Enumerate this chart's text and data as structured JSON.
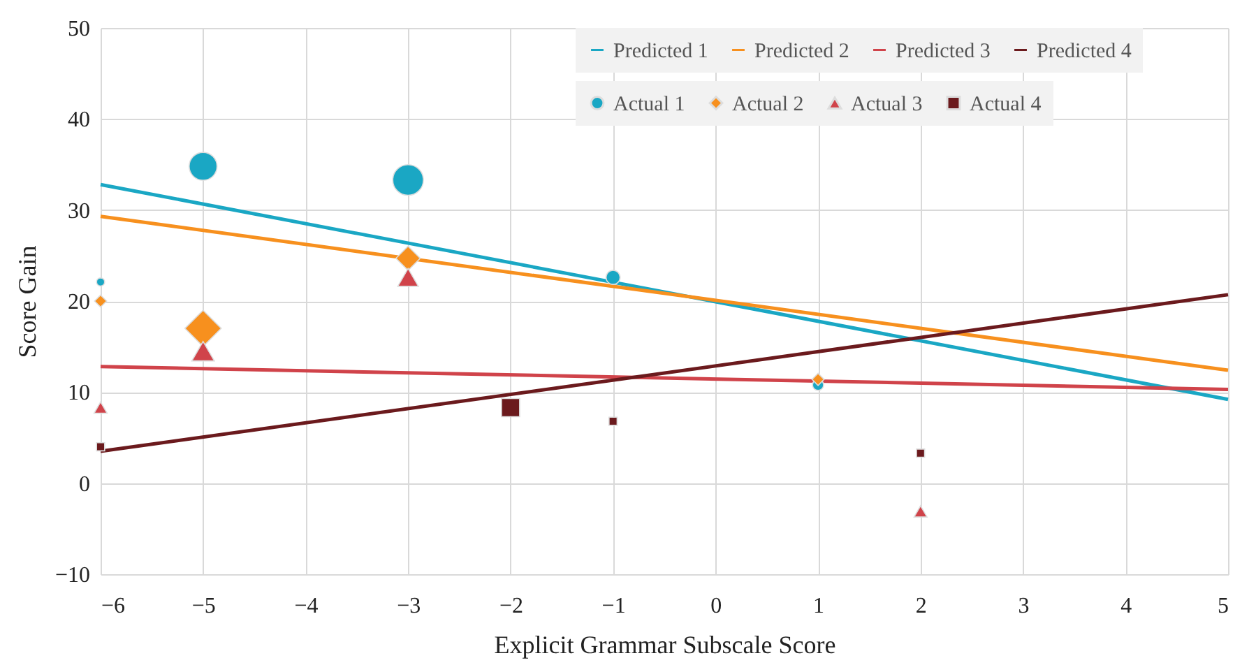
{
  "chart_data": {
    "type": "bubble",
    "xlabel": "Explicit Grammar Subscale Score",
    "ylabel": "Score Gain",
    "xlim": [
      -6,
      5
    ],
    "xticks": [
      -6,
      -5,
      -4,
      -3,
      -2,
      -1,
      0,
      1,
      2,
      3,
      4,
      5
    ],
    "ylim": [
      -10,
      50
    ],
    "yticks": [
      -10,
      0,
      10,
      20,
      30,
      40,
      50
    ],
    "grid": true,
    "legend": "top right",
    "series": [
      {
        "name": "Predicted 1",
        "type": "line",
        "color": "#1aa7c4",
        "x": [
          -6,
          5
        ],
        "values": [
          32.8,
          9.2
        ]
      },
      {
        "name": "Predicted 2",
        "type": "line",
        "color": "#f7901e",
        "x": [
          -6,
          5
        ],
        "values": [
          29.3,
          12.4
        ]
      },
      {
        "name": "Predicted 3",
        "type": "line",
        "color": "#d0434a",
        "x": [
          -6,
          5
        ],
        "values": [
          12.8,
          10.3
        ]
      },
      {
        "name": "Predicted 4",
        "type": "line",
        "color": "#6b1a1d",
        "x": [
          -6,
          5
        ],
        "values": [
          3.5,
          20.7
        ]
      },
      {
        "name": "Actual 1",
        "marker": "circle",
        "color": "#1aa7c4",
        "x": [
          -6,
          -5,
          -3,
          -1,
          1
        ],
        "values": [
          22.1,
          34.8,
          33.3,
          22.6,
          10.8
        ],
        "sizes": [
          0.07,
          0.83,
          1,
          0.21,
          0.13
        ]
      },
      {
        "name": "Actual 2",
        "marker": "diamond",
        "color": "#f7901e",
        "x": [
          -6,
          -5,
          -3,
          1
        ],
        "values": [
          20.0,
          17.0,
          24.7,
          11.4
        ],
        "sizes": [
          0.1,
          0.9,
          0.4,
          0.1
        ]
      },
      {
        "name": "Actual 3",
        "marker": "triangle",
        "color": "#d0434a",
        "x": [
          -6,
          -5,
          -3,
          2
        ],
        "values": [
          8.3,
          14.5,
          22.6,
          -3.1
        ],
        "sizes": [
          0.1,
          0.3,
          0.25,
          0.1
        ]
      },
      {
        "name": "Actual 4",
        "marker": "square",
        "color": "#6b1a1d",
        "x": [
          -6,
          -2,
          -1,
          2
        ],
        "values": [
          4.0,
          8.3,
          6.8,
          3.3
        ],
        "sizes": [
          0.07,
          0.35,
          0.07,
          0.07
        ]
      }
    ]
  }
}
